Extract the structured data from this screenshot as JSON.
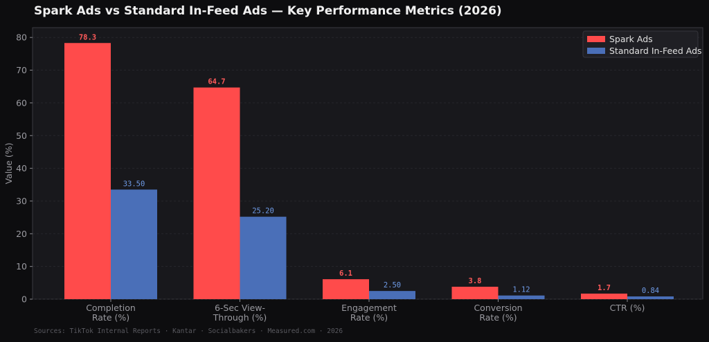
{
  "chart_data": {
    "type": "bar",
    "title": "Spark Ads vs Standard In-Feed Ads — Key Performance Metrics (2026)",
    "ylabel": "Value (%)",
    "xlabel": "",
    "ylim": [
      0,
      83
    ],
    "yticks": [
      0,
      10,
      20,
      30,
      40,
      50,
      60,
      70,
      80
    ],
    "grid": true,
    "legend_position": "top-right",
    "categories": [
      [
        "Completion",
        "Rate (%)"
      ],
      [
        "6-Sec View-",
        "Through (%)"
      ],
      [
        "Engagement",
        "Rate (%)"
      ],
      [
        "Conversion",
        "Rate (%)"
      ],
      [
        "CTR (%)"
      ]
    ],
    "series": [
      {
        "name": "Spark Ads",
        "color": "#ff4b4b",
        "label_color": "#ff5a5a",
        "values": [
          78.3,
          64.7,
          6.1,
          3.8,
          1.7
        ],
        "labels": [
          "78.3",
          "64.7",
          "6.1",
          "3.8",
          "1.7"
        ]
      },
      {
        "name": "Standard In-Feed Ads",
        "color": "#4a6fb8",
        "label_color": "#6f9be6",
        "values": [
          33.5,
          25.2,
          2.5,
          1.12,
          0.84
        ],
        "labels": [
          "33.50",
          "25.20",
          "2.50",
          "1.12",
          "0.84"
        ]
      }
    ]
  },
  "footer": {
    "sources": "Sources: TikTok Internal Reports · Kantar · Socialbakers · Measured.com · 2026"
  },
  "colors": {
    "page_background": "#0d0d0f",
    "plot_background": "#18181c",
    "grid": "#26262c",
    "axis": "#3a3a40"
  }
}
